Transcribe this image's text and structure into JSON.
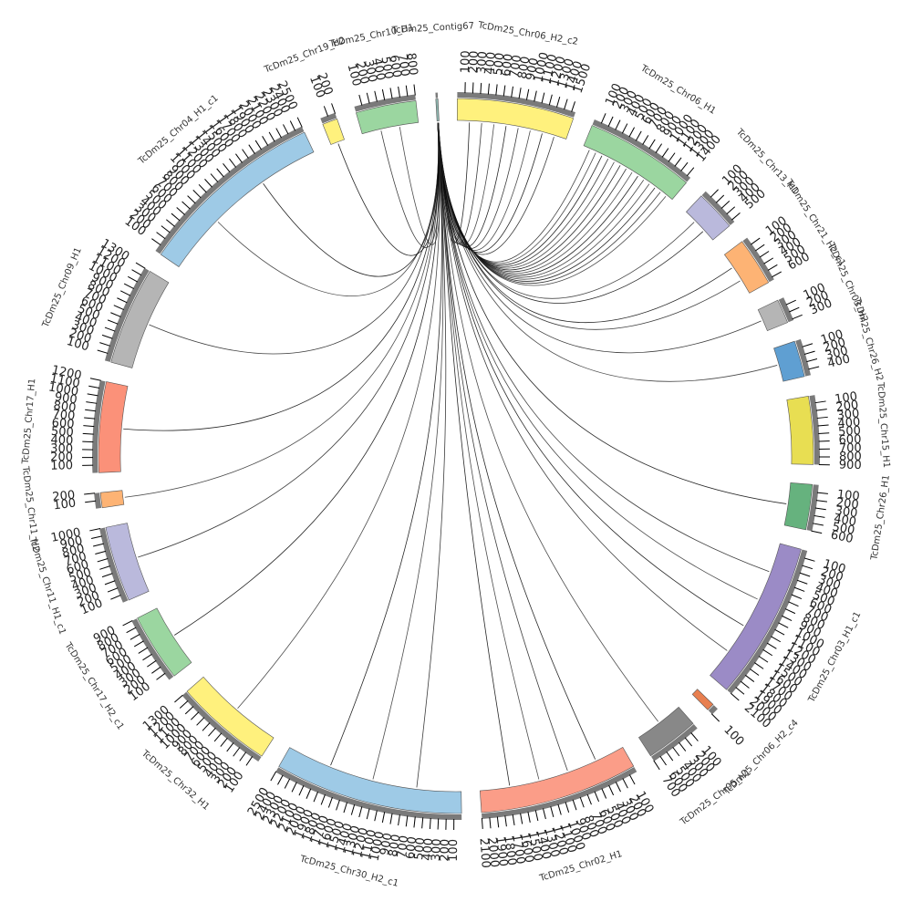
{
  "chart_data": {
    "type": "chord",
    "title": "",
    "segments": [
      {
        "name": "TcDm25_Chr06_H2_c2",
        "length": 1550,
        "color": "#FFF17D"
      },
      {
        "name": "TcDm25_Chr06_H1",
        "length": 1450,
        "color": "#9BD6A0"
      },
      {
        "name": "TcDm25_Chr13_H1",
        "length": 540,
        "color": "#BAB9DC"
      },
      {
        "name": "TcDm25_Chr21_H2_c1",
        "length": 640,
        "color": "#FDB374"
      },
      {
        "name": "TcDm25_Chr03_H2",
        "length": 320,
        "color": "#B5B5B5"
      },
      {
        "name": "TcDm25_Chr26_H2",
        "length": 480,
        "color": "#5F9FD2"
      },
      {
        "name": "TcDm25_Chr15_H1",
        "length": 900,
        "color": "#E8DE52"
      },
      {
        "name": "TcDm25_Chr26_H1",
        "length": 600,
        "color": "#66B27E"
      },
      {
        "name": "TcDm25_Chr03_H1_c1",
        "length": 2100,
        "color": "#9B8BC6"
      },
      {
        "name": "TcDm25_Chr06_H2_c4",
        "length": 100,
        "color": "#E87F4F"
      },
      {
        "name": "TcDm25_Chr05_H1",
        "length": 700,
        "color": "#888888"
      },
      {
        "name": "TcDm25_Chr02_H1",
        "length": 2100,
        "color": "#FB9D88"
      },
      {
        "name": "TcDm25_Chr30_H2_c1",
        "length": 2500,
        "color": "#9ECAE6"
      },
      {
        "name": "TcDm25_Chr32_H1",
        "length": 1300,
        "color": "#FFF17D"
      },
      {
        "name": "TcDm25_Chr17_H2_c1",
        "length": 900,
        "color": "#9BD6A0"
      },
      {
        "name": "TcDm25_Chr11_H1_c1",
        "length": 1000,
        "color": "#BAB9DC"
      },
      {
        "name": "TcDm25_Chr11_H2",
        "length": 200,
        "color": "#FDB374"
      },
      {
        "name": "TcDm25_Chr17_H1",
        "length": 1200,
        "color": "#FB9179"
      },
      {
        "name": "TcDm25_Chr09_H1",
        "length": 1300,
        "color": "#B5B5B5"
      },
      {
        "name": "TcDm25_Chr04_H1_c1",
        "length": 2500,
        "color": "#9ECAE6"
      },
      {
        "name": "TcDm25_Chr19_H2",
        "length": 200,
        "color": "#FFF17D"
      },
      {
        "name": "TcDm25_Chr10_H1",
        "length": 800,
        "color": "#9BD6A0"
      },
      {
        "name": "TcDm25_Contig67",
        "length": 20,
        "color": "#8FB7B0"
      }
    ],
    "links": [
      {
        "source": 22,
        "target": 0,
        "count": 8
      },
      {
        "source": 22,
        "target": 1,
        "count": 14
      },
      {
        "source": 22,
        "target": 2,
        "count": 2
      },
      {
        "source": 22,
        "target": 3,
        "count": 2
      },
      {
        "source": 22,
        "target": 4,
        "count": 1
      },
      {
        "source": 22,
        "target": 5,
        "count": 1
      },
      {
        "source": 22,
        "target": 7,
        "count": 1
      },
      {
        "source": 22,
        "target": 8,
        "count": 4
      },
      {
        "source": 22,
        "target": 10,
        "count": 1
      },
      {
        "source": 22,
        "target": 11,
        "count": 4
      },
      {
        "source": 22,
        "target": 12,
        "count": 3
      },
      {
        "source": 22,
        "target": 13,
        "count": 1
      },
      {
        "source": 22,
        "target": 14,
        "count": 1
      },
      {
        "source": 22,
        "target": 15,
        "count": 1
      },
      {
        "source": 22,
        "target": 16,
        "count": 1
      },
      {
        "source": 22,
        "target": 17,
        "count": 1
      },
      {
        "source": 22,
        "target": 18,
        "count": 1
      },
      {
        "source": 22,
        "target": 19,
        "count": 2
      },
      {
        "source": 22,
        "target": 20,
        "count": 1
      },
      {
        "source": 22,
        "target": 21,
        "count": 2
      }
    ],
    "legend": "none",
    "grid": false
  }
}
